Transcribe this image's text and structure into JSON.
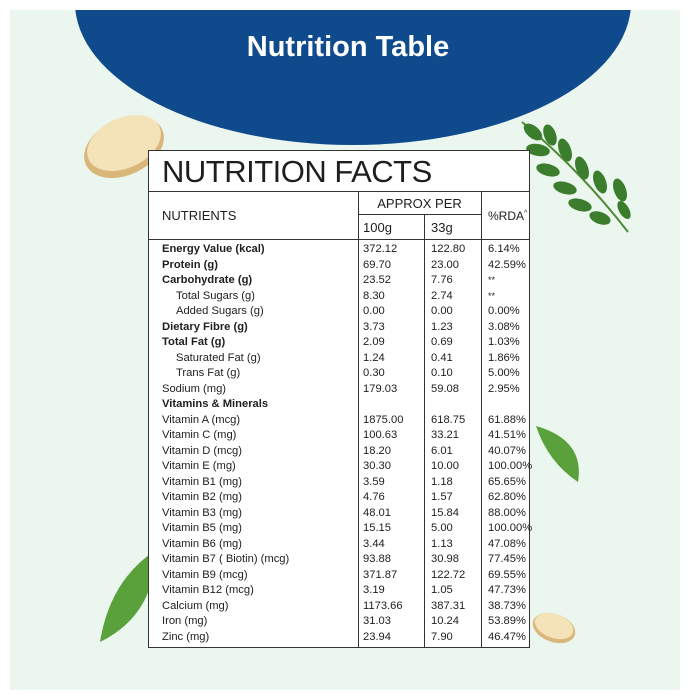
{
  "header": {
    "title": "Nutrition Table"
  },
  "table": {
    "heading": "NUTRITION FACTS",
    "columns": {
      "nutrients": "NUTRIENTS",
      "approx_per": "APPROX PER",
      "per_100g": "100g",
      "per_33g": "33g",
      "rda": "%RDA",
      "rda_mark": "^"
    },
    "rows": [
      [
        "Energy Value (kcal)",
        "372.12",
        "122.80",
        "6.14%"
      ],
      [
        "Protein (g)",
        "69.70",
        "23.00",
        "42.59%"
      ],
      [
        "Carbohydrate (g)",
        "23.52",
        "7.76",
        "**"
      ],
      [
        "Total Sugars (g)",
        "8.30",
        "2.74",
        "**"
      ],
      [
        "Added Sugars (g)",
        "0.00",
        "0.00",
        "0.00%"
      ],
      [
        "Dietary Fibre (g)",
        "3.73",
        "1.23",
        "3.08%"
      ],
      [
        "Total Fat (g)",
        "2.09",
        "0.69",
        "1.03%"
      ],
      [
        "Saturated Fat (g)",
        "1.24",
        "0.41",
        "1.86%"
      ],
      [
        "Trans Fat (g)",
        "0.30",
        "0.10",
        "5.00%"
      ],
      [
        "Sodium (mg)",
        "179.03",
        "59.08",
        "2.95%"
      ],
      [
        "Vitamins & Minerals"
      ],
      [
        "Vitamin A (mcg)",
        "1875.00",
        "618.75",
        "61.88%"
      ],
      [
        "Vitamin C (mg)",
        "100.63",
        "33.21",
        "41.51%"
      ],
      [
        "Vitamin D (mcg)",
        "18.20",
        "6.01",
        "40.07%"
      ],
      [
        "Vitamin E (mg)",
        "30.30",
        "10.00",
        "100.00%"
      ],
      [
        "Vitamin B1 (mg)",
        "3.59",
        "1.18",
        "65.65%"
      ],
      [
        "Vitamin B2 (mg)",
        "4.76",
        "1.57",
        "62.80%"
      ],
      [
        "Vitamin B3 (mg)",
        "48.01",
        "15.84",
        "88.00%"
      ],
      [
        "Vitamin B5 (mg)",
        "15.15",
        "5.00",
        "100.00%"
      ],
      [
        "Vitamin B6 (mg)",
        "3.44",
        "1.13",
        "47.08%"
      ],
      [
        "Vitamin B7 ( Biotin) (mcg)",
        "93.88",
        "30.98",
        "77.45%"
      ],
      [
        "Vitamin B9 (mcg)",
        "371.87",
        "122.72",
        "69.55%"
      ],
      [
        "Vitamin B12 (mcg)",
        "3.19",
        "1.05",
        "47.73%"
      ],
      [
        "Calcium (mg)",
        "1173.66",
        "387.31",
        "38.73%"
      ],
      [
        "Iron (mg)",
        "31.03",
        "10.24",
        "53.89%"
      ],
      [
        "Zinc (mg)",
        "23.94",
        "7.90",
        "46.47%"
      ]
    ]
  }
}
